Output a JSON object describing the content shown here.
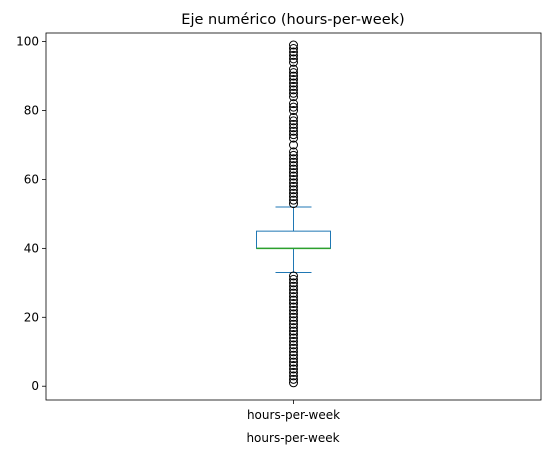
{
  "chart_data": {
    "type": "box",
    "title": "Eje numérico (hours-per-week)",
    "xlabel": "hours-per-week",
    "ylabel": "",
    "categories": [
      "hours-per-week"
    ],
    "ylim": [
      -4,
      102.5
    ],
    "yticks": [
      0,
      20,
      40,
      60,
      80,
      100
    ],
    "grid": false,
    "box": {
      "whisker_low": 33,
      "q1": 40,
      "median": 40,
      "q3": 45,
      "whisker_high": 52
    },
    "outliers_low": [
      1,
      2,
      3,
      4,
      5,
      6,
      7,
      8,
      9,
      10,
      11,
      12,
      13,
      14,
      15,
      16,
      17,
      18,
      19,
      20,
      21,
      22,
      23,
      24,
      25,
      26,
      27,
      28,
      29,
      30,
      31,
      32
    ],
    "outliers_high": [
      53,
      54,
      55,
      56,
      57,
      58,
      59,
      60,
      61,
      62,
      63,
      64,
      65,
      66,
      67,
      68,
      70,
      72,
      73,
      74,
      75,
      76,
      77,
      78,
      80,
      81,
      82,
      84,
      85,
      86,
      87,
      88,
      89,
      90,
      91,
      92,
      94,
      95,
      96,
      97,
      98,
      99
    ],
    "colors": {
      "box": "#1f77b4",
      "median": "#2ca02c",
      "outlier": "#000000"
    }
  }
}
